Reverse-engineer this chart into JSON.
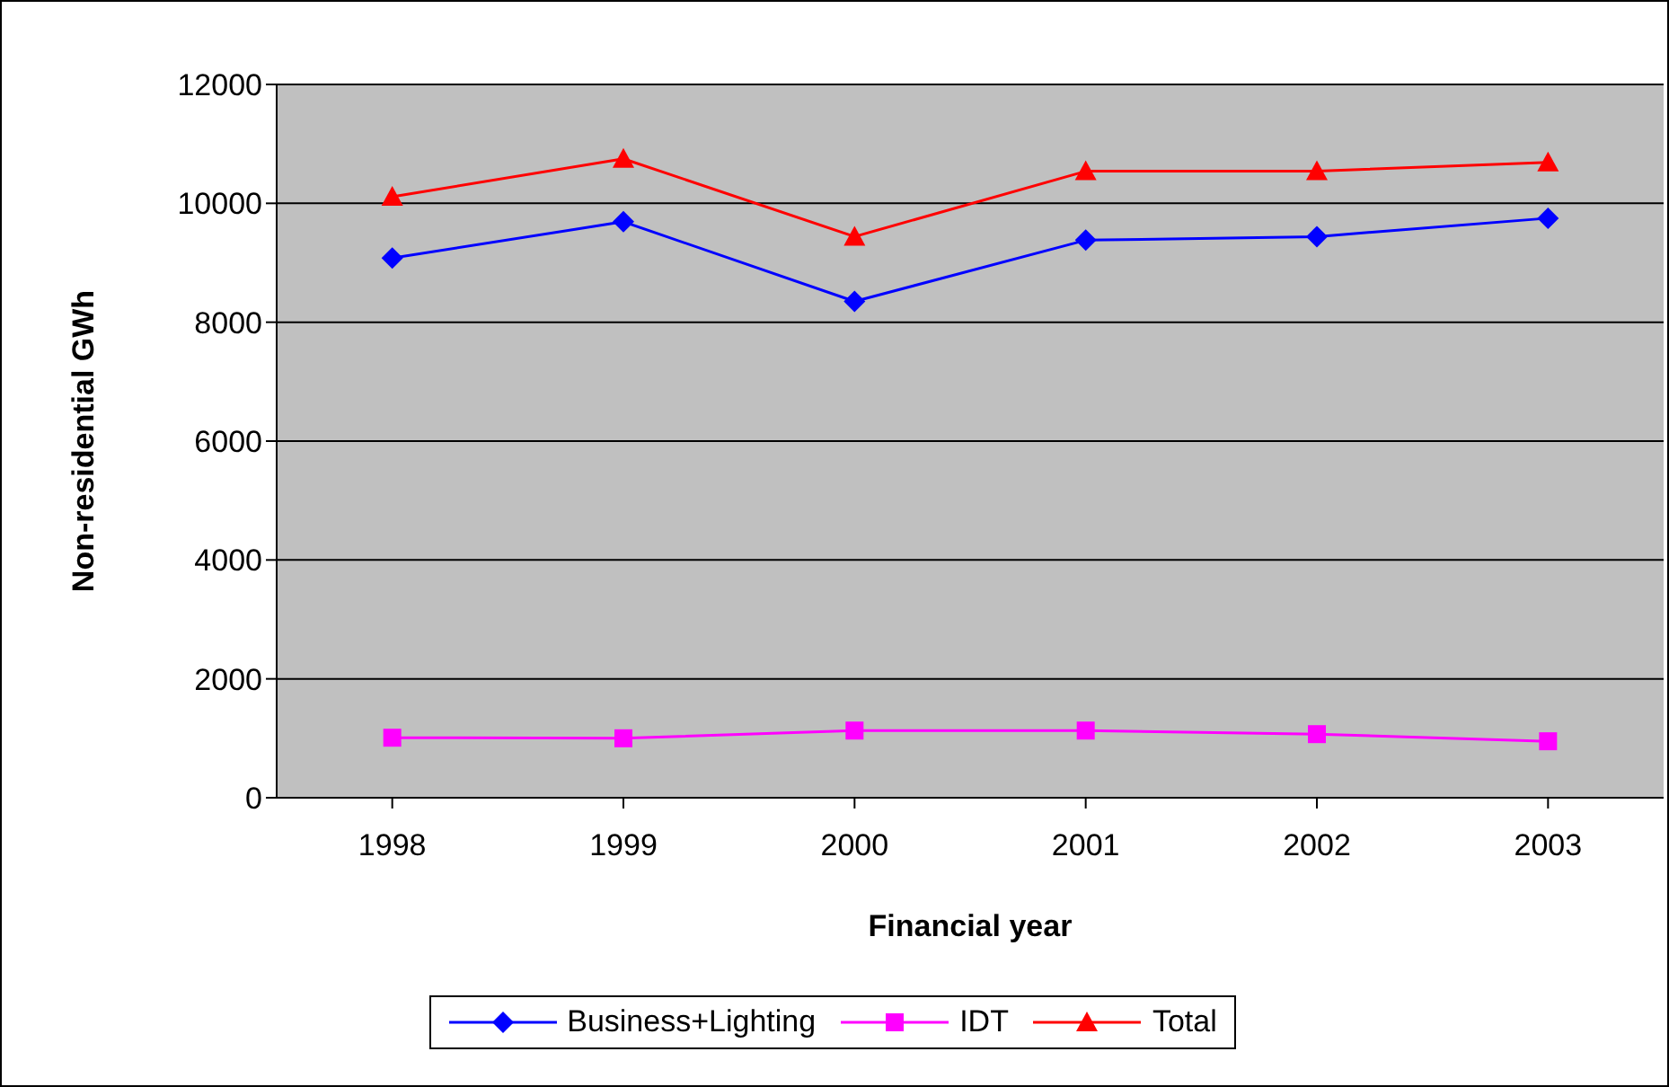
{
  "chart_data": {
    "type": "line",
    "xlabel": "Financial year",
    "ylabel": "Non-residential GWh",
    "categories": [
      "1998",
      "1999",
      "2000",
      "2001",
      "2002",
      "2003"
    ],
    "series": [
      {
        "name": "Business+Lighting",
        "color": "#0000ff",
        "marker": "diamond",
        "values": [
          9080,
          9690,
          8350,
          9380,
          9440,
          9750
        ]
      },
      {
        "name": "IDT",
        "color": "#ff00ff",
        "marker": "square",
        "values": [
          1010,
          1000,
          1130,
          1130,
          1070,
          950
        ]
      },
      {
        "name": "Total",
        "color": "#ff0000",
        "marker": "triangle",
        "values": [
          10110,
          10750,
          9440,
          10540,
          10540,
          10690
        ]
      }
    ],
    "ylim": [
      0,
      12000
    ],
    "yticks": [
      0,
      2000,
      4000,
      6000,
      8000,
      10000,
      12000
    ],
    "grid": "y",
    "legend": "bottom"
  }
}
